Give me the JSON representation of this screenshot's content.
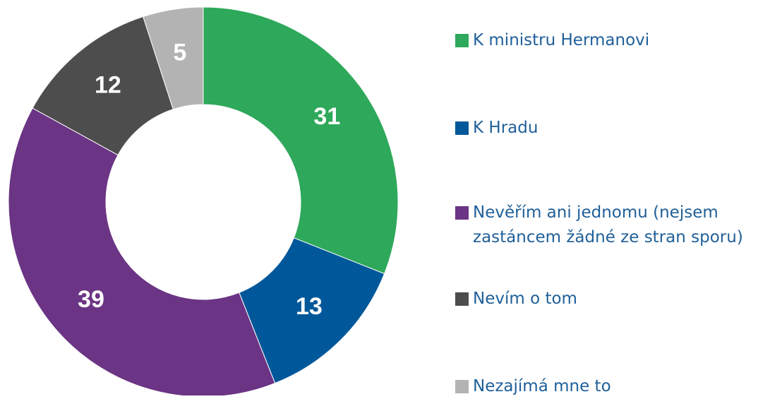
{
  "chart_data": {
    "type": "pie",
    "categories": [
      "K ministru Hermanovi",
      "K Hradu",
      "Nevěřím ani jednomu (nejsem zastáncem žádné ze stran sporu)",
      "Nevím o tom",
      "Nezajímá mne to"
    ],
    "values": [
      31,
      13,
      39,
      12,
      5
    ],
    "colors": [
      "#2ea85a",
      "#00589a",
      "#6b3484",
      "#4d4d4d",
      "#b3b3b3"
    ],
    "donut": true
  }
}
